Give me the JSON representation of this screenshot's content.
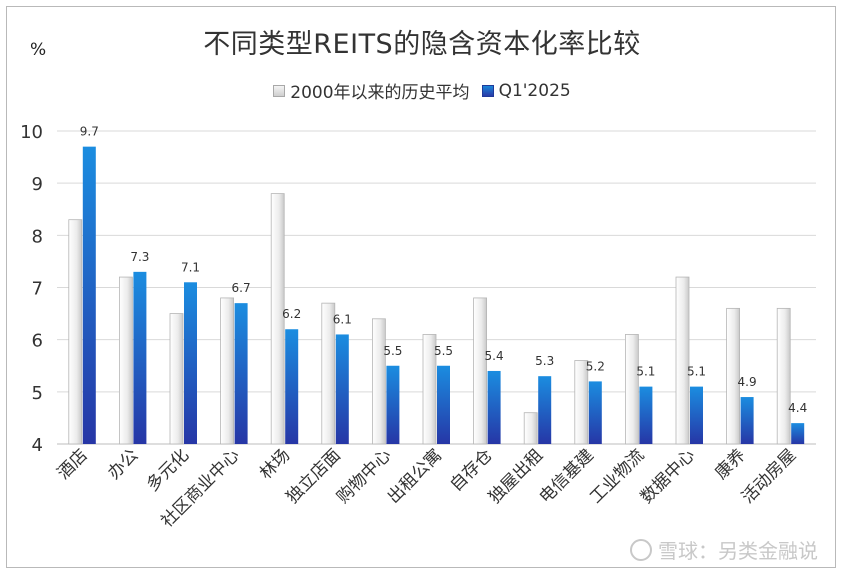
{
  "chart_data": {
    "type": "bar",
    "title": "不同类型REITS的隐含资本化率比较",
    "ylabel": "%",
    "ylim": [
      4,
      10
    ],
    "yticks": [
      4,
      5,
      6,
      7,
      8,
      9,
      10
    ],
    "grid": true,
    "legend_position": "top-center",
    "categories": [
      "酒店",
      "办公",
      "多元化",
      "社区商业中心",
      "林场",
      "独立店面",
      "购物中心",
      "出租公寓",
      "自存仓",
      "独屋出租",
      "电信基建",
      "工业物流",
      "数据中心",
      "康养",
      "活动房屋"
    ],
    "series": [
      {
        "name": "2000年以来的历史平均",
        "values": [
          8.3,
          7.2,
          6.5,
          6.8,
          8.8,
          6.7,
          6.4,
          6.1,
          6.8,
          4.6,
          5.6,
          6.1,
          7.2,
          6.6,
          6.6
        ],
        "color": "#e6e6e6",
        "data_labels": false
      },
      {
        "name": "Q1'2025",
        "values": [
          9.7,
          7.3,
          7.1,
          6.7,
          6.2,
          6.1,
          5.5,
          5.5,
          5.4,
          5.3,
          5.2,
          5.1,
          5.1,
          4.9,
          4.4
        ],
        "color": "#1f5fc4",
        "data_labels": true
      }
    ]
  },
  "watermark": {
    "text": "雪球：另类金融说",
    "icon": "snowball-logo-icon"
  }
}
